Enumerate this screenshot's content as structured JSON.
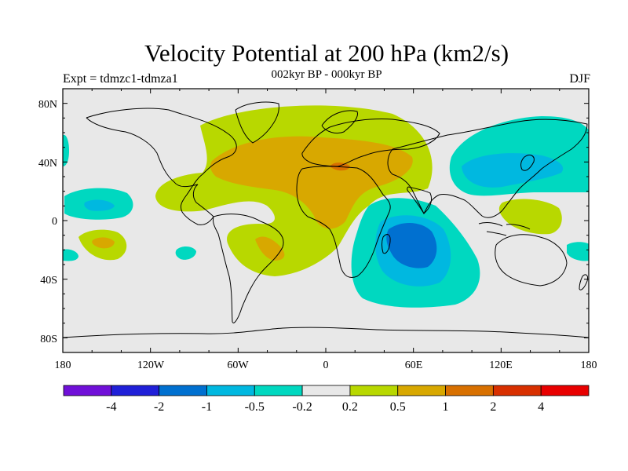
{
  "title": "Velocity Potential at 200 hPa (km2/s)",
  "expt": "Expt = tdmzc1-tdmza1",
  "period": "002kyr BP - 000kyr BP",
  "season": "DJF",
  "lat_ticks": [
    "80N",
    "40N",
    "0",
    "40S",
    "80S"
  ],
  "lon_ticks": [
    "180",
    "120W",
    "60W",
    "0",
    "60E",
    "120E",
    "180"
  ],
  "colorbar": {
    "colors": [
      "#7010d8",
      "#2020d8",
      "#0070d0",
      "#00b8e0",
      "#00d8c0",
      "#e8e8e8",
      "#b8d800",
      "#d8a800",
      "#d87000",
      "#d83000",
      "#e80000"
    ],
    "labels": [
      "-4",
      "-2",
      "-1",
      "-0.5",
      "-0.2",
      "0.2",
      "0.5",
      "1",
      "2",
      "4"
    ]
  },
  "colors": {
    "background": "#e8e8e8",
    "neg_weak": "#00d8c0",
    "neg_mod": "#00b8e0",
    "neg_strong": "#0070d0",
    "pos_weak": "#b8d800",
    "pos_mod": "#d8a800",
    "pos_strong": "#d87000"
  }
}
